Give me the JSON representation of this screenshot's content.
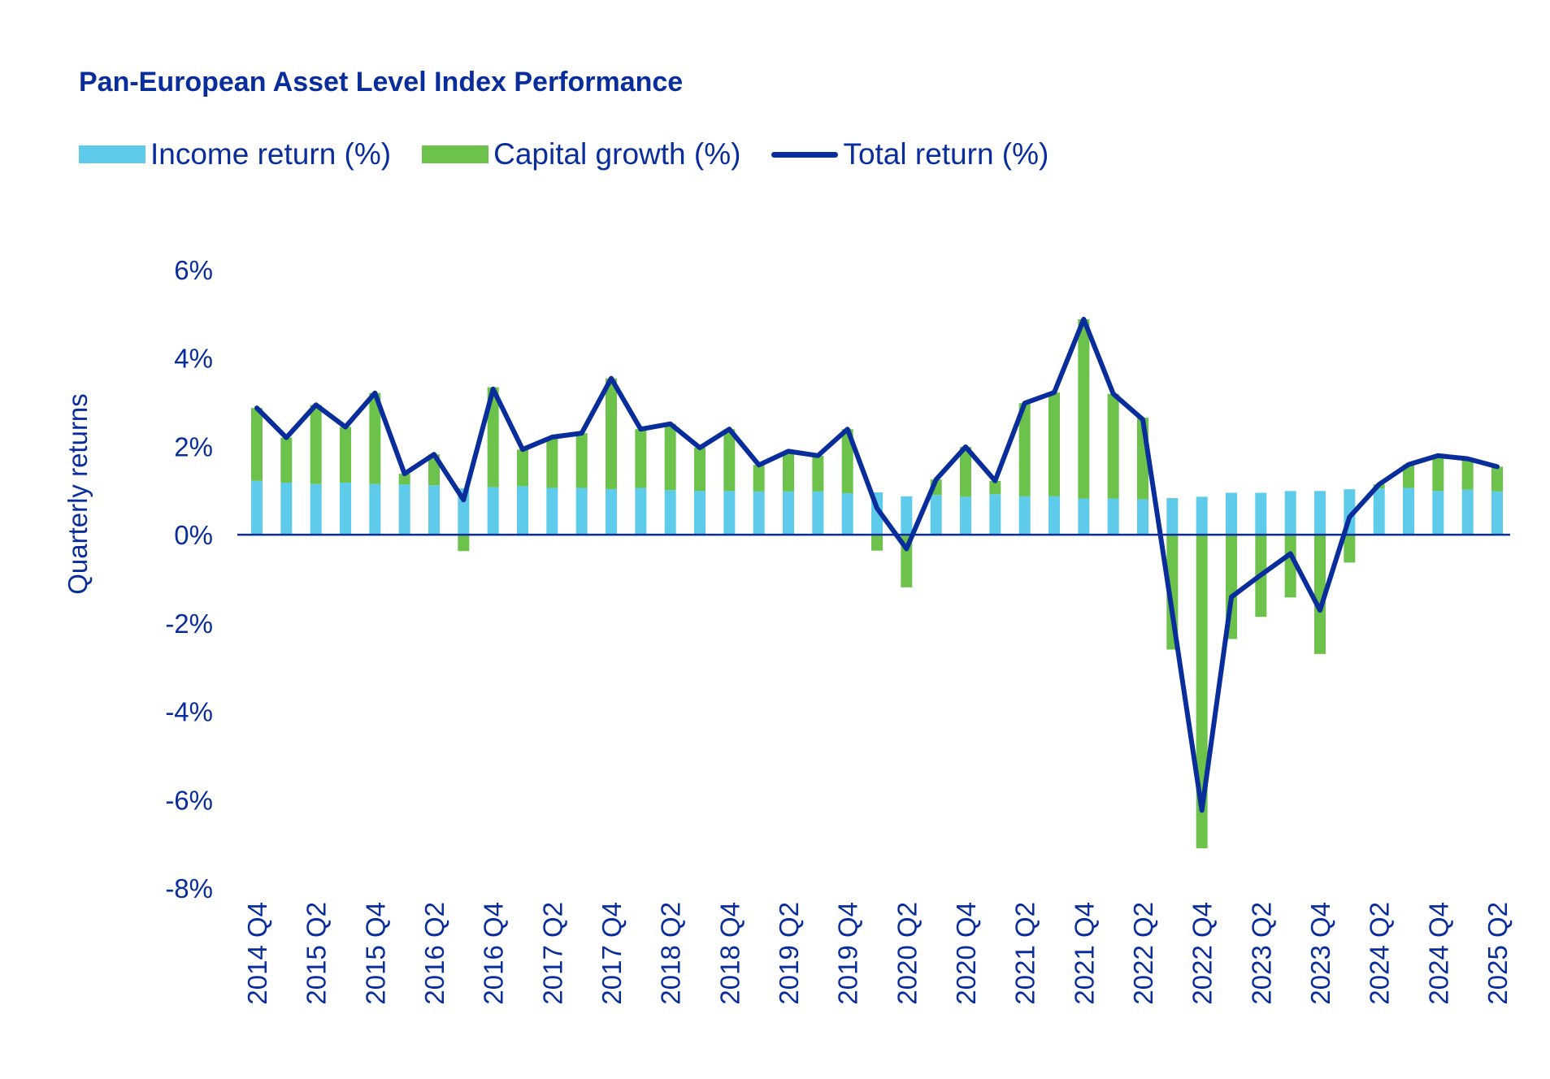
{
  "colors": {
    "text": "#0a2d9c",
    "income": "#5dcbe9",
    "capital": "#6cc24a",
    "total": "#0a2d9c",
    "axis": "#0a2d9c"
  },
  "chart_data": {
    "type": "bar",
    "title": "Pan-European Asset Level Index Performance",
    "xlabel": "",
    "ylabel": "Quarterly returns",
    "ylim": [
      -8,
      6
    ],
    "yticks": [
      6,
      4,
      2,
      0,
      -2,
      -4,
      -6,
      -8
    ],
    "ytick_labels": [
      "6%",
      "4%",
      "2%",
      "0%",
      "-2%",
      "-4%",
      "-6%",
      "-8%"
    ],
    "legend_position": "top-left",
    "grid": false,
    "categories": [
      "2014 Q4",
      "2015 Q1",
      "2015 Q2",
      "2015 Q3",
      "2015 Q4",
      "2016 Q1",
      "2016 Q2",
      "2016 Q3",
      "2016 Q4",
      "2017 Q1",
      "2017 Q2",
      "2017 Q3",
      "2017 Q4",
      "2018 Q1",
      "2018 Q2",
      "2018 Q3",
      "2018 Q4",
      "2019 Q1",
      "2019 Q2",
      "2019 Q3",
      "2019 Q4",
      "2020 Q1",
      "2020 Q2",
      "2020 Q3",
      "2020 Q4",
      "2021 Q1",
      "2021 Q2",
      "2021 Q3",
      "2021 Q4",
      "2022 Q1",
      "2022 Q2",
      "2022 Q3",
      "2022 Q4",
      "2023 Q1",
      "2023 Q2",
      "2023 Q3",
      "2023 Q4",
      "2024 Q1",
      "2024 Q2",
      "2024 Q3",
      "2024 Q4",
      "2025 Q1",
      "2025 Q2"
    ],
    "visible_tick_labels": [
      "2014 Q4",
      "2015 Q2",
      "2015 Q4",
      "2016 Q2",
      "2016 Q4",
      "2017 Q2",
      "2017 Q4",
      "2018 Q2",
      "2018 Q4",
      "2019 Q2",
      "2019 Q4",
      "2020 Q2",
      "2020 Q4",
      "2021 Q2",
      "2021 Q4",
      "2022 Q2",
      "2022 Q4",
      "2023 Q2",
      "2023 Q4",
      "2024 Q2",
      "2024 Q4",
      "2025 Q2"
    ],
    "series": [
      {
        "name": "Income return (%)",
        "kind": "bar",
        "color_key": "income",
        "values": [
          1.22,
          1.18,
          1.15,
          1.18,
          1.15,
          1.14,
          1.12,
          1.05,
          1.08,
          1.1,
          1.06,
          1.06,
          1.03,
          1.06,
          1.01,
          0.99,
          0.99,
          0.98,
          0.98,
          0.98,
          0.94,
          0.96,
          0.87,
          0.9,
          0.86,
          0.92,
          0.87,
          0.87,
          0.82,
          0.82,
          0.8,
          0.83,
          0.86,
          0.95,
          0.95,
          0.99,
          0.99,
          1.03,
          1.05,
          1.06,
          0.99,
          1.02,
          0.98
        ]
      },
      {
        "name": "Capital growth (%)",
        "kind": "bar",
        "color_key": "capital",
        "values": [
          1.65,
          1.02,
          1.79,
          1.26,
          2.06,
          0.24,
          0.7,
          -0.37,
          2.26,
          0.83,
          1.15,
          1.24,
          2.51,
          1.33,
          1.5,
          0.98,
          1.4,
          0.6,
          0.91,
          0.81,
          1.45,
          -0.36,
          -1.19,
          0.35,
          1.13,
          0.3,
          2.11,
          2.35,
          4.06,
          2.37,
          1.85,
          -2.6,
          -7.1,
          -2.36,
          -1.86,
          -1.42,
          -2.7,
          -0.63,
          0.09,
          0.53,
          0.8,
          0.7,
          0.56
        ]
      },
      {
        "name": "Total return (%)",
        "kind": "line",
        "color_key": "total",
        "values": [
          2.87,
          2.2,
          2.94,
          2.44,
          3.21,
          1.38,
          1.82,
          0.79,
          3.3,
          1.93,
          2.21,
          2.3,
          3.54,
          2.39,
          2.51,
          1.97,
          2.39,
          1.58,
          1.89,
          1.79,
          2.39,
          0.6,
          -0.32,
          1.25,
          1.99,
          1.22,
          2.98,
          3.22,
          4.88,
          3.19,
          2.61,
          -1.77,
          -6.24,
          -1.41,
          -0.91,
          -0.43,
          -1.71,
          0.4,
          1.14,
          1.59,
          1.79,
          1.72,
          1.54
        ]
      }
    ]
  }
}
